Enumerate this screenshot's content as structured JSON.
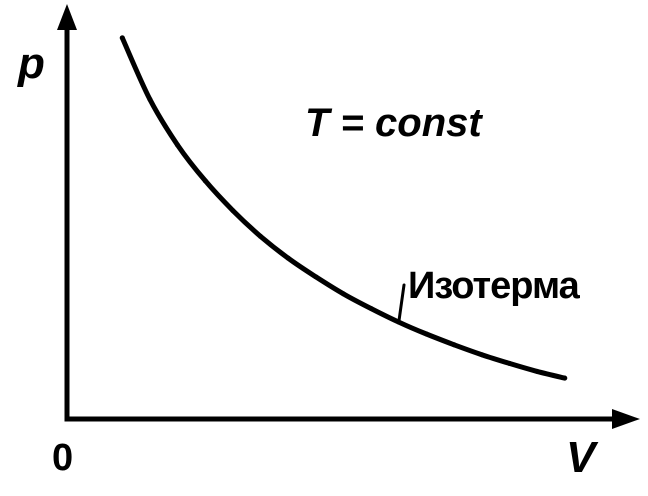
{
  "chart_data": {
    "type": "line",
    "xlabel": "V",
    "ylabel": "p",
    "origin_label": "0",
    "annotation": "T = const",
    "xlim": [
      0,
      10
    ],
    "ylim": [
      0,
      10
    ],
    "grid": false,
    "series": [
      {
        "name": "Изотерма",
        "x": [
          1.0,
          1.5,
          2.0,
          2.5,
          3.0,
          3.5,
          4.0,
          4.5,
          5.0,
          5.5,
          6.0,
          6.5,
          7.0,
          7.5,
          8.0,
          8.5,
          9.0
        ],
        "y": [
          9.6,
          8.05,
          6.9,
          6.0,
          5.25,
          4.6,
          4.05,
          3.58,
          3.15,
          2.78,
          2.44,
          2.14,
          1.87,
          1.62,
          1.4,
          1.2,
          1.03
        ]
      }
    ],
    "colors": {
      "axes": "#000000",
      "curve": "#000000",
      "text": "#000000"
    }
  }
}
